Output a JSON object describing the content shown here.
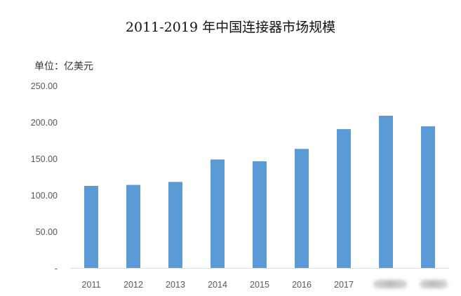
{
  "chart_data": {
    "type": "bar",
    "title": "2011-2019 年中国连接器市场规模",
    "unit_label": "单位：亿美元",
    "categories": [
      "2011",
      "2012",
      "2013",
      "2014",
      "2015",
      "2016",
      "2017",
      "2018",
      "2019"
    ],
    "visible_category_labels": [
      "2011",
      "2012",
      "2013",
      "2014",
      "2015",
      "2016",
      "2017"
    ],
    "values": [
      112.5,
      113.8,
      117.9,
      148.7,
      146.2,
      163.2,
      190.3,
      208.7,
      194.1
    ],
    "y_ticks": [
      "-",
      "50.00",
      "100.00",
      "150.00",
      "200.00",
      "250.00"
    ],
    "ylim": [
      0,
      250
    ],
    "bar_color": "#5b9bd5",
    "grid": false,
    "legend": "none"
  }
}
